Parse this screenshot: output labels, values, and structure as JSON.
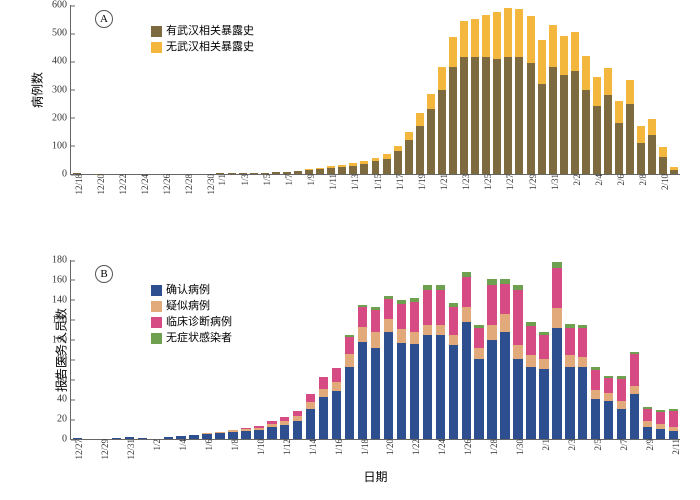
{
  "background_color": "#ffffff",
  "panelA": {
    "badge": "A",
    "ylabel": "病例数",
    "ylim": [
      0,
      600
    ],
    "ytick_step": 100,
    "legend": [
      {
        "label": "有武汉相关暴露史",
        "color": "#7d6a3f"
      },
      {
        "label": "无武汉相关暴露史",
        "color": "#f4b73e"
      }
    ],
    "xticks": [
      "12/18",
      "12/20",
      "12/22",
      "12/24",
      "12/26",
      "12/28",
      "12/30",
      "1/1",
      "1/3",
      "1/5",
      "1/7",
      "1/9",
      "1/11",
      "1/13",
      "1/15",
      "1/17",
      "1/19",
      "1/21",
      "1/23",
      "1/25",
      "1/27",
      "1/29",
      "1/31",
      "2/2",
      "2/4",
      "2/6",
      "2/8",
      "2/10"
    ],
    "dates": [
      "12/18",
      "12/19",
      "12/20",
      "12/21",
      "12/22",
      "12/23",
      "12/24",
      "12/25",
      "12/26",
      "12/27",
      "12/28",
      "12/29",
      "12/30",
      "1/1",
      "1/2",
      "1/3",
      "1/4",
      "1/5",
      "1/6",
      "1/7",
      "1/8",
      "1/9",
      "1/10",
      "1/11",
      "1/12",
      "1/13",
      "1/14",
      "1/15",
      "1/16",
      "1/17",
      "1/18",
      "1/19",
      "1/20",
      "1/21",
      "1/22",
      "1/23",
      "1/24",
      "1/25",
      "1/26",
      "1/27",
      "1/28",
      "1/29",
      "1/30",
      "1/31",
      "2/1",
      "2/2",
      "2/3",
      "2/4",
      "2/5",
      "2/6",
      "2/7",
      "2/8",
      "2/9",
      "2/10",
      "2/11"
    ],
    "series": {
      "with_exposure": [
        2,
        0,
        1,
        0,
        0,
        0,
        0,
        0,
        0,
        0,
        0,
        0,
        0,
        2,
        3,
        4,
        5,
        5,
        6,
        8,
        10,
        15,
        18,
        22,
        26,
        30,
        35,
        45,
        55,
        80,
        120,
        170,
        230,
        300,
        380,
        415,
        415,
        415,
        410,
        415,
        415,
        395,
        320,
        380,
        350,
        365,
        300,
        240,
        280,
        180,
        250,
        110,
        140,
        60,
        15
      ],
      "without_exposure": [
        0,
        0,
        0,
        0,
        0,
        0,
        0,
        0,
        0,
        0,
        0,
        0,
        0,
        0,
        0,
        0,
        0,
        0,
        0,
        0,
        0,
        2,
        3,
        5,
        6,
        8,
        10,
        12,
        15,
        20,
        30,
        45,
        55,
        80,
        105,
        130,
        135,
        150,
        165,
        175,
        170,
        165,
        155,
        150,
        140,
        140,
        120,
        105,
        95,
        80,
        85,
        60,
        55,
        35,
        10
      ]
    }
  },
  "panelB": {
    "badge": "B",
    "ylabel": "报告医务人员数",
    "xlabel": "日期",
    "ylim": [
      0,
      180
    ],
    "ytick_step": 20,
    "legend": [
      {
        "label": "确认病例",
        "color": "#2d4f8f"
      },
      {
        "label": "疑似病例",
        "color": "#e2a97a"
      },
      {
        "label": "临床诊断病例",
        "color": "#d74b84"
      },
      {
        "label": "无症状感染者",
        "color": "#6fa04f"
      }
    ],
    "xticks": [
      "12/27",
      "12/29",
      "12/31",
      "1/2",
      "1/4",
      "1/6",
      "1/8",
      "1/10",
      "1/12",
      "1/14",
      "1/16",
      "1/18",
      "1/20",
      "1/22",
      "1/24",
      "1/26",
      "1/28",
      "1/30",
      "2/1",
      "2/3",
      "2/5",
      "2/7",
      "2/9",
      "2/11"
    ],
    "dates": [
      "12/27",
      "12/28",
      "12/29",
      "12/30",
      "12/31",
      "1/1",
      "1/2",
      "1/3",
      "1/4",
      "1/5",
      "1/6",
      "1/7",
      "1/8",
      "1/9",
      "1/10",
      "1/11",
      "1/12",
      "1/13",
      "1/14",
      "1/15",
      "1/16",
      "1/17",
      "1/18",
      "1/19",
      "1/20",
      "1/21",
      "1/22",
      "1/23",
      "1/24",
      "1/25",
      "1/26",
      "1/27",
      "1/28",
      "1/29",
      "1/30",
      "1/31",
      "2/1",
      "2/2",
      "2/3",
      "2/4",
      "2/5",
      "2/6",
      "2/7",
      "2/8",
      "2/9",
      "2/10",
      "2/11"
    ],
    "series": {
      "confirmed": [
        1,
        0,
        0,
        1,
        2,
        1,
        0,
        2,
        3,
        4,
        5,
        6,
        7,
        8,
        9,
        12,
        14,
        18,
        30,
        42,
        48,
        72,
        98,
        92,
        108,
        97,
        96,
        105,
        105,
        95,
        118,
        80,
        100,
        108,
        80,
        72,
        70,
        112,
        72,
        72,
        40,
        38,
        30,
        45,
        12,
        10,
        8
      ],
      "suspected": [
        0,
        0,
        0,
        0,
        0,
        0,
        0,
        0,
        0,
        0,
        1,
        1,
        2,
        2,
        2,
        3,
        4,
        5,
        7,
        8,
        9,
        13,
        15,
        16,
        13,
        14,
        12,
        10,
        10,
        10,
        15,
        12,
        15,
        18,
        15,
        12,
        10,
        20,
        12,
        10,
        9,
        8,
        8,
        8,
        6,
        5,
        4
      ],
      "clinical": [
        0,
        0,
        0,
        0,
        0,
        0,
        0,
        0,
        0,
        0,
        0,
        0,
        0,
        1,
        2,
        3,
        4,
        5,
        8,
        12,
        14,
        18,
        20,
        22,
        20,
        25,
        30,
        35,
        35,
        28,
        30,
        20,
        40,
        30,
        55,
        30,
        25,
        40,
        28,
        30,
        20,
        15,
        22,
        32,
        12,
        12,
        16
      ],
      "asymptomatic": [
        0,
        0,
        0,
        0,
        0,
        0,
        0,
        0,
        0,
        0,
        0,
        0,
        0,
        0,
        0,
        0,
        0,
        0,
        0,
        0,
        0,
        2,
        2,
        3,
        3,
        4,
        4,
        5,
        5,
        4,
        5,
        3,
        6,
        5,
        5,
        4,
        3,
        6,
        4,
        3,
        3,
        2,
        3,
        3,
        2,
        2,
        2
      ]
    }
  }
}
